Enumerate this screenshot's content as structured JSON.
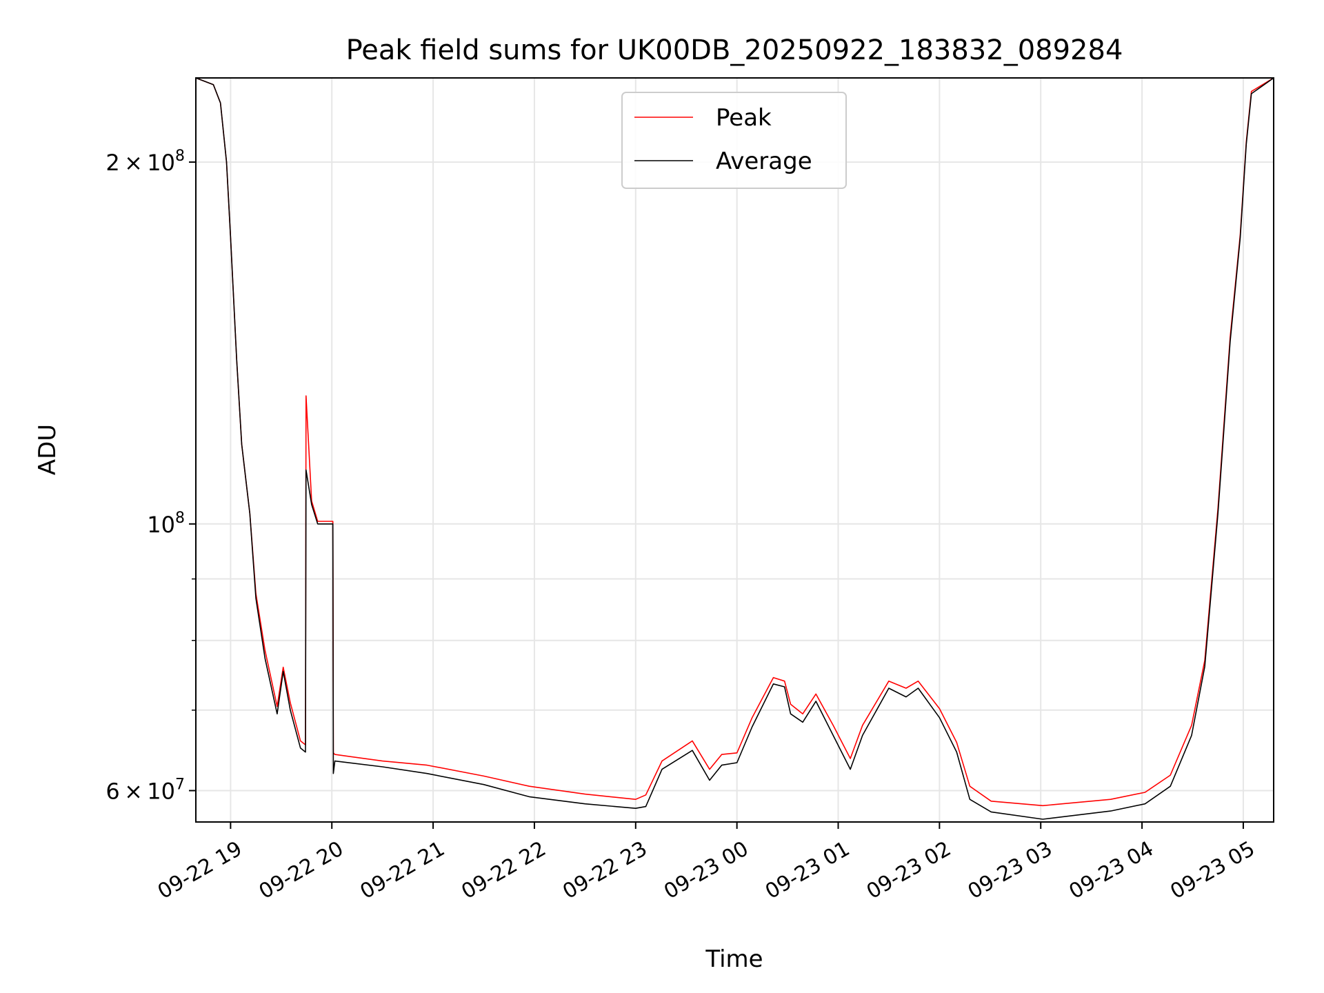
{
  "chart_data": {
    "type": "line",
    "title": "Peak field sums for UK00DB_20250922_183832_089284",
    "xlabel": "Time",
    "ylabel": "ADU",
    "yscale": "log",
    "x_unit": "hours since 09-22 00:00",
    "xlim": [
      18.657,
      29.3
    ],
    "ylim": [
      56500000,
      235000000
    ],
    "grid": true,
    "legend_position": "top-center",
    "x_ticks": [
      {
        "value": 19,
        "label": "09-22 19"
      },
      {
        "value": 20,
        "label": "09-22 20"
      },
      {
        "value": 21,
        "label": "09-22 21"
      },
      {
        "value": 22,
        "label": "09-22 22"
      },
      {
        "value": 23,
        "label": "09-22 23"
      },
      {
        "value": 24,
        "label": "09-23 00"
      },
      {
        "value": 25,
        "label": "09-23 01"
      },
      {
        "value": 26,
        "label": "09-23 02"
      },
      {
        "value": 27,
        "label": "09-23 03"
      },
      {
        "value": 28,
        "label": "09-23 04"
      },
      {
        "value": 29,
        "label": "09-23 05"
      }
    ],
    "y_ticks": [
      {
        "value": 200000000,
        "mantissa": "2",
        "exp": "8"
      },
      {
        "value": 100000000,
        "mantissa": "",
        "exp": "8"
      },
      {
        "value": 60000000,
        "mantissa": "6",
        "exp": "7"
      }
    ],
    "y_minor_ticks": [
      70000000,
      80000000,
      90000000
    ],
    "x": [
      18.657,
      18.83,
      18.9,
      18.96,
      19.0,
      19.06,
      19.11,
      19.15,
      19.19,
      19.25,
      19.34,
      19.46,
      19.52,
      19.59,
      19.69,
      19.74,
      19.745,
      19.8,
      19.86,
      20.01,
      20.015,
      20.03,
      20.5,
      20.94,
      21.5,
      21.95,
      22.5,
      23.0,
      23.1,
      23.26,
      23.56,
      23.73,
      23.85,
      24.0,
      24.15,
      24.36,
      24.47,
      24.53,
      24.65,
      24.78,
      24.95,
      25.12,
      25.24,
      25.5,
      25.67,
      25.79,
      26.0,
      26.17,
      26.3,
      26.51,
      27.02,
      27.69,
      28.03,
      28.28,
      28.49,
      28.62,
      28.75,
      28.87,
      28.97,
      29.03,
      29.08,
      29.3
    ],
    "series": [
      {
        "name": "Peak",
        "color": "#ff0000",
        "values": [
          235000000,
          232000000,
          224000000,
          200000000,
          173000000,
          137000000,
          116500000,
          109000000,
          102000000,
          87500000,
          78500000,
          70500000,
          76000000,
          71000000,
          66000000,
          65500000,
          127800000,
          104500000,
          100500000,
          100500000,
          64500000,
          64300000,
          63500000,
          63000000,
          61700000,
          60500000,
          59600000,
          59000000,
          59500000,
          63500000,
          66000000,
          62500000,
          64300000,
          64500000,
          69000000,
          74500000,
          74000000,
          70800000,
          69500000,
          72200000,
          68000000,
          63800000,
          68000000,
          74000000,
          73000000,
          74000000,
          70200000,
          65800000,
          60500000,
          58800000,
          58300000,
          59000000,
          59800000,
          61800000,
          68000000,
          77000000,
          103000000,
          143000000,
          174000000,
          208000000,
          229000000,
          235000000
        ]
      },
      {
        "name": "Average",
        "color": "#000000",
        "values": [
          235000000,
          232000000,
          224000000,
          200000000,
          173000000,
          137000000,
          116500000,
          109000000,
          102000000,
          86700000,
          77300000,
          69500000,
          75400000,
          70000000,
          65100000,
          64600000,
          110900000,
          103800000,
          100000000,
          100000000,
          62000000,
          63500000,
          62800000,
          62000000,
          60700000,
          59300000,
          58500000,
          58000000,
          58200000,
          62500000,
          64800000,
          61200000,
          63000000,
          63300000,
          67800000,
          73600000,
          73200000,
          69500000,
          68400000,
          71200000,
          66700000,
          62500000,
          66700000,
          73000000,
          71800000,
          73000000,
          69000000,
          64600000,
          59000000,
          57600000,
          56800000,
          57700000,
          58500000,
          60500000,
          66700000,
          76100000,
          102000000,
          141800000,
          173000000,
          207000000,
          228000000,
          235000000
        ]
      }
    ]
  }
}
